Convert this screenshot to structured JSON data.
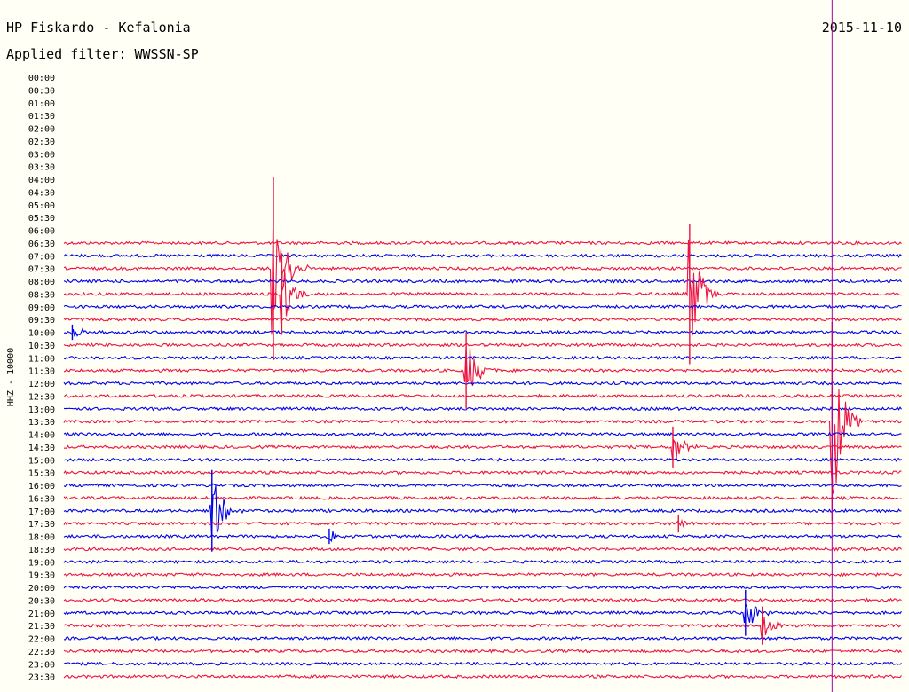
{
  "header": {
    "station": "HP Fiskardo - Kefalonia",
    "filter": "Applied filter: WWSSN-SP",
    "date": "2015-11-10"
  },
  "axis": {
    "ylabel": "HHZ - 10000"
  },
  "colors": {
    "blue": "#0000ee",
    "red": "#ee1144",
    "marker": "#aa00aa",
    "background": "#fffff6"
  },
  "chart_data": {
    "type": "helicorder",
    "title": "HP Fiskardo - Kefalonia",
    "subtitle": "Applied filter: WWSSN-SP",
    "date": "2015-11-10",
    "ylabel": "HHZ - 10000",
    "row_minutes": 30,
    "row_times": [
      "00:00",
      "00:30",
      "01:00",
      "01:30",
      "02:00",
      "02:30",
      "03:00",
      "03:30",
      "04:00",
      "04:30",
      "05:00",
      "05:30",
      "06:00",
      "06:30",
      "07:00",
      "07:30",
      "08:00",
      "08:30",
      "09:00",
      "09:30",
      "10:00",
      "10:30",
      "11:00",
      "11:30",
      "12:00",
      "12:30",
      "13:00",
      "13:30",
      "14:00",
      "14:30",
      "15:00",
      "15:30",
      "16:00",
      "16:30",
      "17:00",
      "17:30",
      "18:00",
      "18:30",
      "19:00",
      "19:30",
      "20:00",
      "20:30",
      "21:00",
      "21:30",
      "22:00",
      "22:30",
      "23:00",
      "23:30"
    ],
    "trace_start_row": "06:30",
    "color_cycle": [
      "blue",
      "red"
    ],
    "current_time_marker_minute": 27.5,
    "events": [
      {
        "row": "07:30",
        "minute": 7.5,
        "amplitude": 7.2
      },
      {
        "row": "08:30",
        "minute": 7.8,
        "amplitude": 3.2
      },
      {
        "row": "08:30",
        "minute": 22.4,
        "amplitude": 5.5
      },
      {
        "row": "10:00",
        "minute": 0.3,
        "amplitude": 0.6
      },
      {
        "row": "11:30",
        "minute": 14.4,
        "amplitude": 3.0
      },
      {
        "row": "13:30",
        "minute": 27.5,
        "amplitude": 7.8
      },
      {
        "row": "14:30",
        "minute": 21.8,
        "amplitude": 1.6
      },
      {
        "row": "17:00",
        "minute": 5.3,
        "amplitude": 3.2
      },
      {
        "row": "17:30",
        "minute": 22.0,
        "amplitude": 0.7
      },
      {
        "row": "18:00",
        "minute": 9.5,
        "amplitude": 0.6
      },
      {
        "row": "21:00",
        "minute": 24.4,
        "amplitude": 1.8
      },
      {
        "row": "21:30",
        "minute": 25.0,
        "amplitude": 1.5
      }
    ]
  }
}
